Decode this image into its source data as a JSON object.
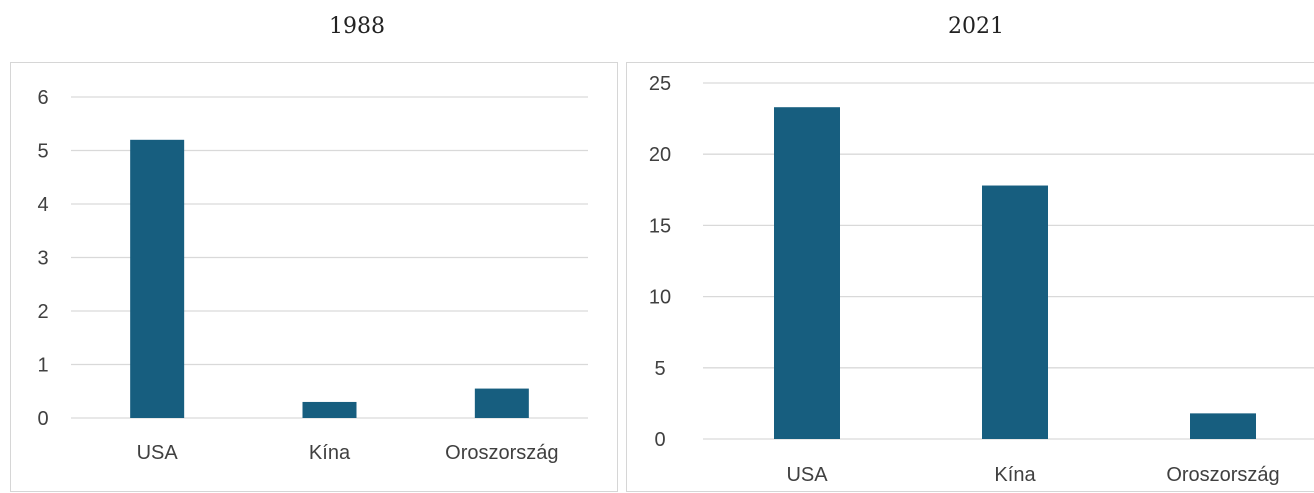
{
  "chart_data": [
    {
      "type": "bar",
      "title": "1988",
      "categories": [
        "USA",
        "Kína",
        "Oroszország"
      ],
      "values": [
        5.2,
        0.3,
        0.55
      ],
      "ylim": [
        0,
        6
      ],
      "yticks": [
        0,
        1,
        2,
        3,
        4,
        5,
        6
      ],
      "grid": true,
      "bar_color": "#175e7f"
    },
    {
      "type": "bar",
      "title": "2021",
      "categories": [
        "USA",
        "Kína",
        "Oroszország"
      ],
      "values": [
        23.3,
        17.8,
        1.8
      ],
      "ylim": [
        0,
        25
      ],
      "yticks": [
        0,
        5,
        10,
        15,
        20,
        25
      ],
      "grid": true,
      "bar_color": "#175e7f"
    }
  ]
}
